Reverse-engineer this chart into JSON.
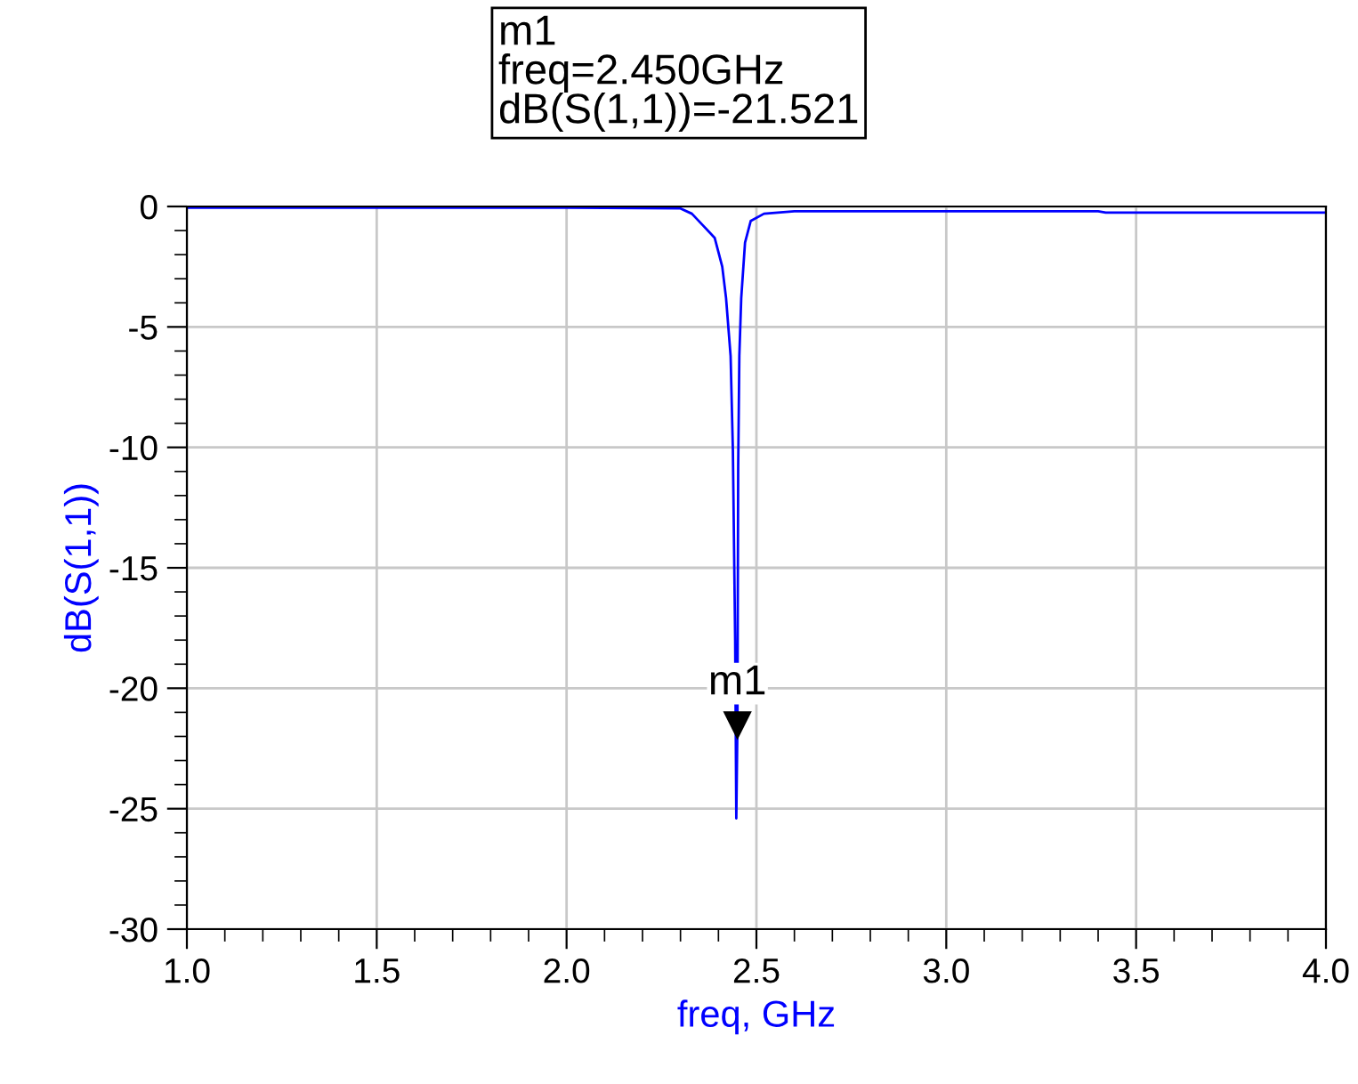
{
  "chart_data": {
    "type": "line",
    "xlabel": "freq, GHz",
    "ylabel": "dB(S(1,1))",
    "x": [
      1.0,
      2.0,
      2.3,
      2.33,
      2.36,
      2.39,
      2.41,
      2.42,
      2.432,
      2.438,
      2.444,
      2.447,
      2.45,
      2.452,
      2.455,
      2.46,
      2.47,
      2.485,
      2.52,
      2.6,
      3.0,
      3.4,
      3.42,
      4.0
    ],
    "series": [
      {
        "color": "#0000ff",
        "values": [
          -0.05,
          -0.05,
          -0.08,
          -0.3,
          -0.8,
          -1.3,
          -2.5,
          -3.8,
          -6.2,
          -10.1,
          -18,
          -25.4,
          -21.5,
          -10.8,
          -6.2,
          -3.8,
          -1.5,
          -0.6,
          -0.3,
          -0.2,
          -0.2,
          -0.2,
          -0.25,
          -0.25
        ]
      }
    ],
    "xlim": [
      1.0,
      4.0
    ],
    "xticks": [
      {
        "value": 1.0,
        "label": "1.0"
      },
      {
        "value": 1.5,
        "label": "1.5"
      },
      {
        "value": 2.0,
        "label": "2.0"
      },
      {
        "value": 2.5,
        "label": "2.5"
      },
      {
        "value": 3.0,
        "label": "3.0"
      },
      {
        "value": 3.5,
        "label": "3.5"
      },
      {
        "value": 4.0,
        "label": "4.0"
      }
    ],
    "ylim": [
      -30,
      0
    ],
    "yticks": [
      -30,
      -25,
      -20,
      -15,
      -10,
      -5,
      0
    ],
    "grid": true,
    "marker": "none",
    "line_style": "solid",
    "legend": false,
    "annotations": [
      {
        "text": "m1",
        "x": 2.45,
        "y": -21.521
      },
      "m1\nfreq=2.450GHz\ndB(S(1,1))=-21.521"
    ]
  }
}
